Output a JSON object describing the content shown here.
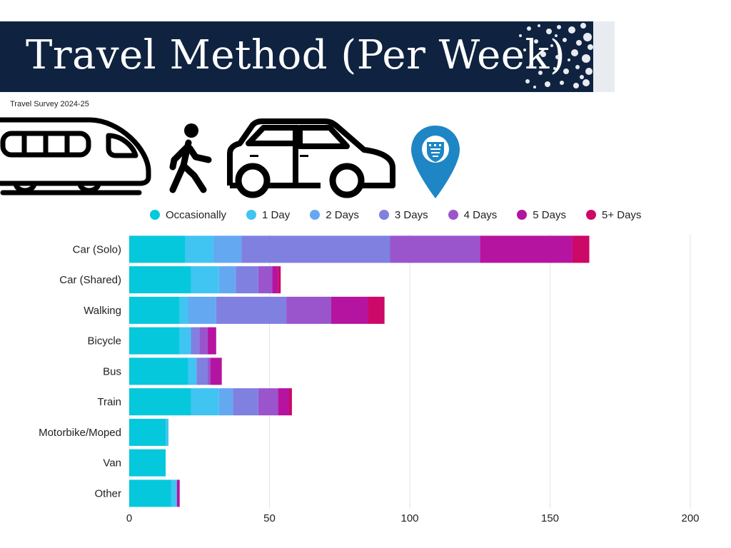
{
  "header": {
    "title": "Travel Method (Per Week)",
    "subtitle": "Travel Survey 2024-25"
  },
  "icons": [
    "train-icon",
    "walking-person-icon",
    "car-icon",
    "location-pin-icon"
  ],
  "colors": {
    "banner": "#0f2340",
    "pin": "#1e86c4"
  },
  "chart_data": {
    "type": "bar",
    "orientation": "horizontal",
    "stacked": true,
    "categories": [
      "Car (Solo)",
      "Car (Shared)",
      "Walking",
      "Bicycle",
      "Bus",
      "Train",
      "Motorbike/Moped",
      "Van",
      "Other"
    ],
    "series": [
      {
        "name": "Occasionally",
        "color": "#06c8dc",
        "values": [
          20,
          22,
          18,
          18,
          21,
          22,
          13,
          13,
          15
        ]
      },
      {
        "name": "1 Day",
        "color": "#40c4f2",
        "values": [
          10,
          10,
          3,
          4,
          3,
          10,
          1,
          0,
          2
        ]
      },
      {
        "name": "2 Days",
        "color": "#64a8f2",
        "values": [
          10,
          6,
          10,
          0,
          0,
          5,
          0,
          0,
          0
        ]
      },
      {
        "name": "3 Days",
        "color": "#8080e0",
        "values": [
          53,
          8,
          25,
          3,
          4,
          9,
          0,
          0,
          0
        ]
      },
      {
        "name": "4 Days",
        "color": "#9b55cc",
        "values": [
          32,
          5,
          16,
          3,
          1,
          7,
          0,
          0,
          0
        ]
      },
      {
        "name": "5 Days",
        "color": "#b514a0",
        "values": [
          33,
          2,
          13,
          3,
          4,
          4,
          0,
          0,
          1
        ]
      },
      {
        "name": "5+ Days",
        "color": "#cc0868",
        "values": [
          6,
          1,
          6,
          0,
          0,
          1,
          0,
          0,
          0
        ]
      }
    ],
    "xlim": [
      0,
      200
    ],
    "xticks": [
      0,
      50,
      100,
      150,
      200
    ],
    "grid": true,
    "legend_position": "top"
  }
}
